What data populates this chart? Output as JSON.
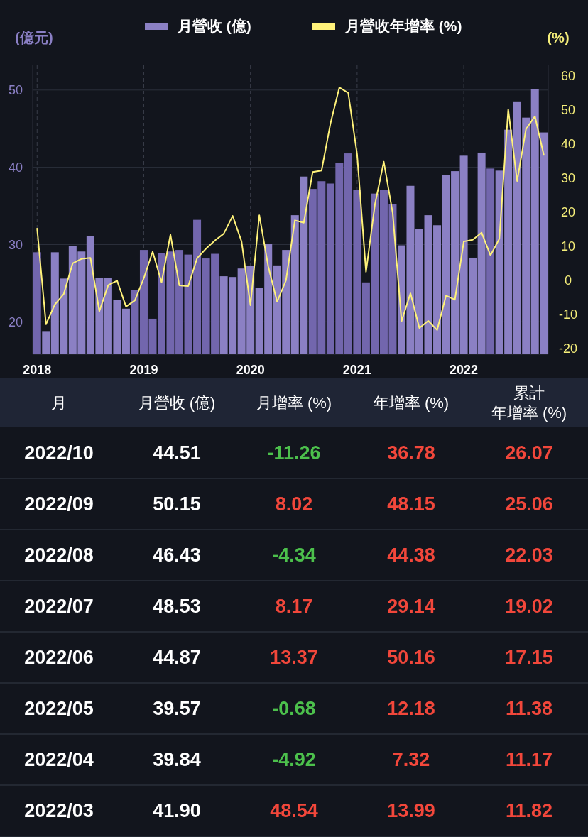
{
  "chart_data": [
    {
      "type": "bar",
      "legend": "top",
      "grid": true,
      "ylabel": "(億元)",
      "y2label": "(%)",
      "categories": [
        "2018",
        null,
        null,
        null,
        null,
        null,
        null,
        null,
        null,
        null,
        null,
        null,
        "2019",
        null,
        null,
        null,
        null,
        null,
        null,
        null,
        null,
        null,
        null,
        null,
        "2020",
        null,
        null,
        null,
        null,
        null,
        null,
        null,
        null,
        null,
        null,
        null,
        "2021",
        null,
        null,
        null,
        null,
        null,
        null,
        null,
        null,
        null,
        null,
        null,
        "2022",
        null,
        null,
        null,
        null,
        null,
        null,
        null,
        null,
        null
      ],
      "ylim": [
        15.8,
        53.2
      ],
      "yticks": [
        20,
        30,
        40,
        50
      ],
      "y2lim": [
        -21.7,
        63.1
      ],
      "y2ticks": [
        -20,
        -10,
        0,
        10,
        20,
        30,
        40,
        50,
        60
      ],
      "series": [
        {
          "name": "月營收 (億)",
          "type": "bar",
          "color": "#8b80c4",
          "values": [
            29.0,
            18.8,
            29.0,
            25.6,
            29.8,
            29.1,
            31.1,
            25.7,
            25.7,
            22.8,
            21.7,
            24.1,
            29.3,
            20.4,
            28.9,
            29.1,
            29.3,
            28.7,
            33.2,
            28.2,
            28.8,
            25.9,
            25.8,
            26.9,
            27.2,
            24.4,
            30.1,
            27.3,
            29.3,
            33.8,
            38.8,
            37.2,
            38.2,
            37.9,
            40.6,
            41.8,
            37.1,
            25.1,
            36.6,
            37.1,
            35.2,
            29.9,
            37.6,
            32.0,
            33.8,
            32.5,
            39.0,
            39.5,
            41.5,
            28.3,
            41.9,
            39.84,
            39.57,
            44.87,
            48.53,
            46.43,
            50.15,
            44.51
          ],
          "colors": [
            "#7266ad",
            "#8b80c4",
            "#8b80c4",
            "#8b80c4",
            "#8b80c4",
            "#8b80c4",
            "#8b80c4",
            "#8b80c4",
            "#8b80c4",
            "#8b80c4",
            "#8b80c4",
            "#7266ad",
            "#7266ad",
            "#7266ad",
            "#7266ad",
            "#7266ad",
            "#7266ad",
            "#7266ad",
            "#7266ad",
            "#7266ad",
            "#7266ad",
            "#8b80c4",
            "#8b80c4",
            "#8b80c4",
            "#8b80c4",
            "#8b80c4",
            "#8b80c4",
            "#8b80c4",
            "#8b80c4",
            "#8b80c4",
            "#8b80c4",
            "#7266ad",
            "#7266ad",
            "#7266ad",
            "#7266ad",
            "#7266ad",
            "#7266ad",
            "#7266ad",
            "#7266ad",
            "#7266ad",
            "#7266ad",
            "#8b80c4",
            "#8b80c4",
            "#8b80c4",
            "#8b80c4",
            "#8b80c4",
            "#8b80c4",
            "#8b80c4",
            "#8b80c4",
            "#8b80c4",
            "#8b80c4",
            "#7266ad",
            "#8b80c4",
            "#8b80c4",
            "#8b80c4",
            "#8b80c4",
            "#8b80c4",
            "#8b80c4"
          ]
        },
        {
          "name": "月營收年增率 (%)",
          "type": "line",
          "axis": "y2",
          "color": "#fff27a",
          "values": [
            15.2,
            -12.9,
            -7.1,
            -4.0,
            5.0,
            6.3,
            6.6,
            -9.1,
            -1.4,
            -0.1,
            -7.7,
            -5.9,
            0.6,
            8.4,
            -0.6,
            13.4,
            -1.5,
            -1.7,
            6.5,
            9.3,
            11.7,
            13.7,
            18.9,
            11.4,
            -7.3,
            19.1,
            4.1,
            -6.3,
            0.0,
            17.6,
            16.9,
            31.8,
            32.2,
            46.0,
            56.6,
            55.0,
            36.9,
            2.5,
            22.2,
            34.8,
            19.8,
            -12.0,
            -3.8,
            -14.0,
            -11.9,
            -14.6,
            -4.5,
            -5.7,
            11.4,
            11.9,
            13.99,
            7.32,
            12.18,
            50.16,
            29.14,
            44.38,
            48.15,
            36.78
          ]
        }
      ]
    },
    {
      "type": "other",
      "data_labels": true,
      "xlabel": "月",
      "categories": [
        "2022/10",
        "2022/09",
        "2022/08",
        "2022/07",
        "2022/06",
        "2022/05",
        "2022/04",
        "2022/03"
      ],
      "series": [
        {
          "name": "月營收 (億)",
          "values": [
            44.51,
            50.15,
            46.43,
            48.53,
            44.87,
            39.57,
            39.84,
            41.9
          ],
          "value_labels": [
            "44.51",
            "50.15",
            "46.43",
            "48.53",
            "44.87",
            "39.57",
            "39.84",
            "41.90"
          ],
          "colors": [
            "#ffffff",
            "#ffffff",
            "#ffffff",
            "#ffffff",
            "#ffffff",
            "#ffffff",
            "#ffffff",
            "#ffffff"
          ]
        },
        {
          "name": "月增率 (%)",
          "values": [
            -11.26,
            8.02,
            -4.34,
            8.17,
            13.37,
            -0.68,
            -4.92,
            48.54
          ],
          "colors": [
            "#4cc04c",
            "#f2473b",
            "#4cc04c",
            "#f2473b",
            "#f2473b",
            "#4cc04c",
            "#4cc04c",
            "#f2473b"
          ]
        },
        {
          "name": "年增率 (%)",
          "values": [
            36.78,
            48.15,
            44.38,
            29.14,
            50.16,
            12.18,
            7.32,
            13.99
          ],
          "colors": [
            "#f2473b",
            "#f2473b",
            "#f2473b",
            "#f2473b",
            "#f2473b",
            "#f2473b",
            "#f2473b",
            "#f2473b"
          ]
        },
        {
          "name": "累計年增率 (%)",
          "values": [
            26.07,
            25.06,
            22.03,
            19.02,
            17.15,
            11.38,
            11.17,
            11.82
          ],
          "colors": [
            "#f2473b",
            "#f2473b",
            "#f2473b",
            "#f2473b",
            "#f2473b",
            "#f2473b",
            "#f2473b",
            "#f2473b"
          ]
        }
      ]
    }
  ]
}
